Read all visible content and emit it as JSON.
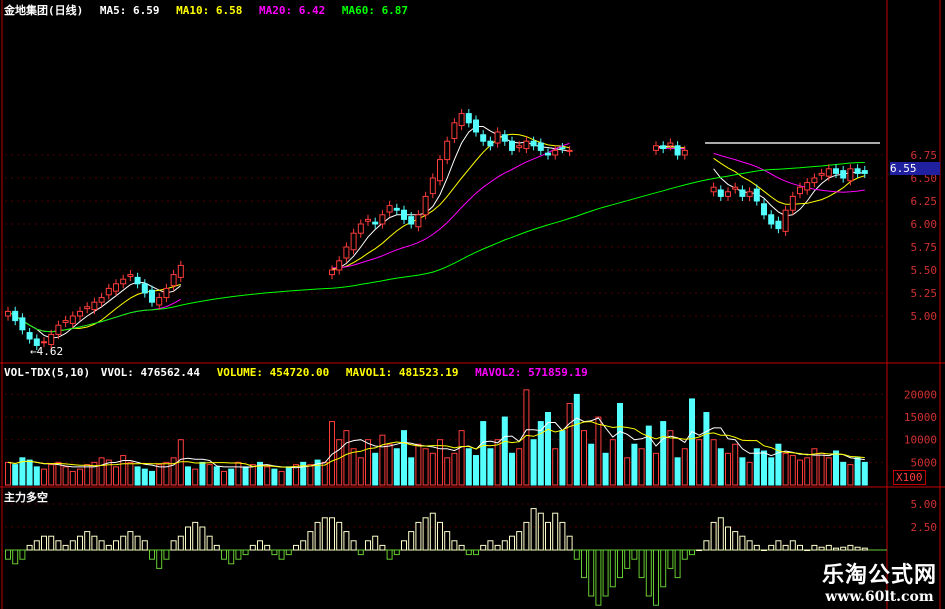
{
  "header": {
    "title": "金地集团(日线)",
    "ma5": "MA5: 6.59",
    "ma10": "MA10: 6.58",
    "ma20": "MA20: 6.42",
    "ma60": "MA60: 6.87"
  },
  "vol_header": {
    "name": "VOL-TDX(5,10)",
    "vvol": "VVOL: 476562.44",
    "volume": "VOLUME: 454720.00",
    "mavol1": "MAVOL1: 481523.19",
    "mavol2": "MAVOL2: 571859.19"
  },
  "lower_header": {
    "name": "主力多空"
  },
  "annotations": {
    "low_label": "←4.62",
    "current_price": "6.55",
    "unit": "X100"
  },
  "watermark": {
    "title": "乐淘公式网",
    "url": "www.60lt.com"
  },
  "colors": {
    "up": "#ff3c3c",
    "down": "#54ffff",
    "ma5": "#ffffff",
    "ma10": "#ffff00",
    "ma20": "#ff00ff",
    "ma60": "#00ff00",
    "axis": "#c00000",
    "positive": "#ffffcc",
    "negative": "#66cc33"
  },
  "chart_data": [
    {
      "type": "candlestick",
      "title": "金地集团(日线)",
      "yticks": [
        "6.75",
        "6.50",
        "6.25",
        "6.00",
        "5.75",
        "5.50",
        "5.25",
        "5.00"
      ],
      "ylim": [
        4.55,
        7.3
      ],
      "close": [
        5.05,
        4.95,
        4.85,
        4.75,
        4.68,
        4.72,
        4.8,
        4.9,
        4.95,
        5.0,
        5.05,
        5.1,
        5.15,
        5.2,
        5.3,
        5.35,
        5.4,
        5.45,
        5.35,
        5.25,
        5.15,
        5.2,
        5.3,
        5.45,
        5.55,
        null,
        null,
        null,
        null,
        null,
        null,
        null,
        null,
        null,
        null,
        null,
        null,
        null,
        null,
        null,
        null,
        null,
        null,
        null,
        null,
        5.5,
        5.6,
        5.75,
        5.9,
        6.0,
        6.05,
        6.0,
        6.1,
        6.2,
        6.15,
        6.05,
        6.0,
        6.1,
        6.3,
        6.5,
        6.7,
        6.9,
        7.1,
        7.2,
        7.1,
        7.0,
        6.9,
        6.85,
        7.0,
        6.9,
        6.8,
        6.85,
        6.9,
        6.85,
        6.8,
        6.75,
        6.8,
        6.82,
        6.8,
        null,
        null,
        null,
        null,
        null,
        null,
        null,
        null,
        null,
        null,
        null,
        6.85,
        6.82,
        6.88,
        6.75,
        6.8,
        null,
        null,
        null,
        6.4,
        6.3,
        6.35,
        6.4,
        6.3,
        6.35,
        6.25,
        6.1,
        6.0,
        5.95,
        6.15,
        6.3,
        6.4,
        6.45,
        6.5,
        6.55,
        6.6,
        6.55,
        6.5,
        6.6,
        6.55,
        6.55
      ],
      "series": [
        {
          "name": "MA5",
          "period": 5
        },
        {
          "name": "MA10",
          "period": 10
        },
        {
          "name": "MA20",
          "period": 20
        },
        {
          "name": "MA60",
          "period": 60
        }
      ]
    },
    {
      "type": "bar",
      "title": "VOL-TDX(5,10)",
      "yticks": [
        "20000",
        "15000",
        "10000",
        "5000"
      ],
      "ylim": [
        0,
        22000
      ],
      "values": [
        5000,
        4500,
        6000,
        5500,
        4000,
        3500,
        4500,
        5000,
        4000,
        3000,
        3500,
        4500,
        5000,
        6000,
        5500,
        4000,
        6500,
        5000,
        4000,
        3500,
        3000,
        4500,
        5000,
        6000,
        10000,
        4000,
        3500,
        5000,
        4500,
        4000,
        3000,
        3500,
        5000,
        4000,
        4500,
        5000,
        4000,
        3500,
        3000,
        4000,
        4500,
        5000,
        4500,
        5500,
        5000,
        14000,
        10000,
        12000,
        8000,
        6000,
        10000,
        7000,
        11000,
        9000,
        8000,
        12000,
        6000,
        9000,
        8000,
        7000,
        10000,
        6000,
        7000,
        12000,
        8000,
        6500,
        14000,
        8000,
        10000,
        15000,
        7000,
        8000,
        21000,
        10000,
        14000,
        16000,
        8000,
        12000,
        18000,
        20000,
        12000,
        9000,
        15000,
        7000,
        10000,
        18000,
        6000,
        9000,
        8000,
        13000,
        7000,
        14000,
        12000,
        6000,
        8000,
        19000,
        10000,
        16000,
        10000,
        8000,
        7000,
        9000,
        6000,
        5000,
        8000,
        7500,
        6000,
        9000,
        7000,
        6500,
        5500,
        6000,
        8000,
        7000,
        6000,
        7500,
        5000,
        4500,
        6000,
        5000
      ]
    },
    {
      "type": "bar",
      "title": "主力多空",
      "yticks": [
        "5.00",
        "2.50"
      ],
      "ylim": [
        -6.5,
        6
      ],
      "values": [
        -1,
        -1.5,
        -1,
        0.5,
        1,
        1.5,
        1.5,
        1,
        0.5,
        1,
        1.5,
        2,
        1.5,
        1,
        0.5,
        1,
        1.5,
        2,
        1.5,
        1,
        -1,
        -2,
        -1,
        1,
        1.5,
        2.5,
        3,
        2.5,
        1.5,
        0.5,
        -1,
        -1.5,
        -1,
        -0.5,
        0.5,
        1,
        0.5,
        -0.5,
        -1,
        -0.5,
        0.5,
        1,
        2,
        3,
        3.5,
        3.5,
        3,
        2,
        1,
        -0.5,
        1,
        1.5,
        0.5,
        -1,
        -0.5,
        1,
        2,
        3,
        3.5,
        4,
        3,
        2,
        1,
        0.5,
        -0.5,
        -0.5,
        0.5,
        1,
        0.5,
        1,
        1.5,
        2,
        3,
        4.5,
        4,
        3,
        4,
        3,
        1.5,
        -1,
        -3,
        -5,
        -6,
        -5,
        -4,
        -3,
        -2,
        -1,
        -3,
        -5,
        -6,
        -4,
        -2,
        -3,
        -1,
        -0.5,
        0,
        1,
        3,
        3.5,
        2.5,
        2,
        1.5,
        1,
        0.5,
        0,
        0.5,
        1,
        0.5,
        1,
        0.5,
        0,
        0.5,
        0.3,
        0.5,
        0.2,
        0.3,
        0.5,
        0.3,
        0.2
      ]
    }
  ]
}
